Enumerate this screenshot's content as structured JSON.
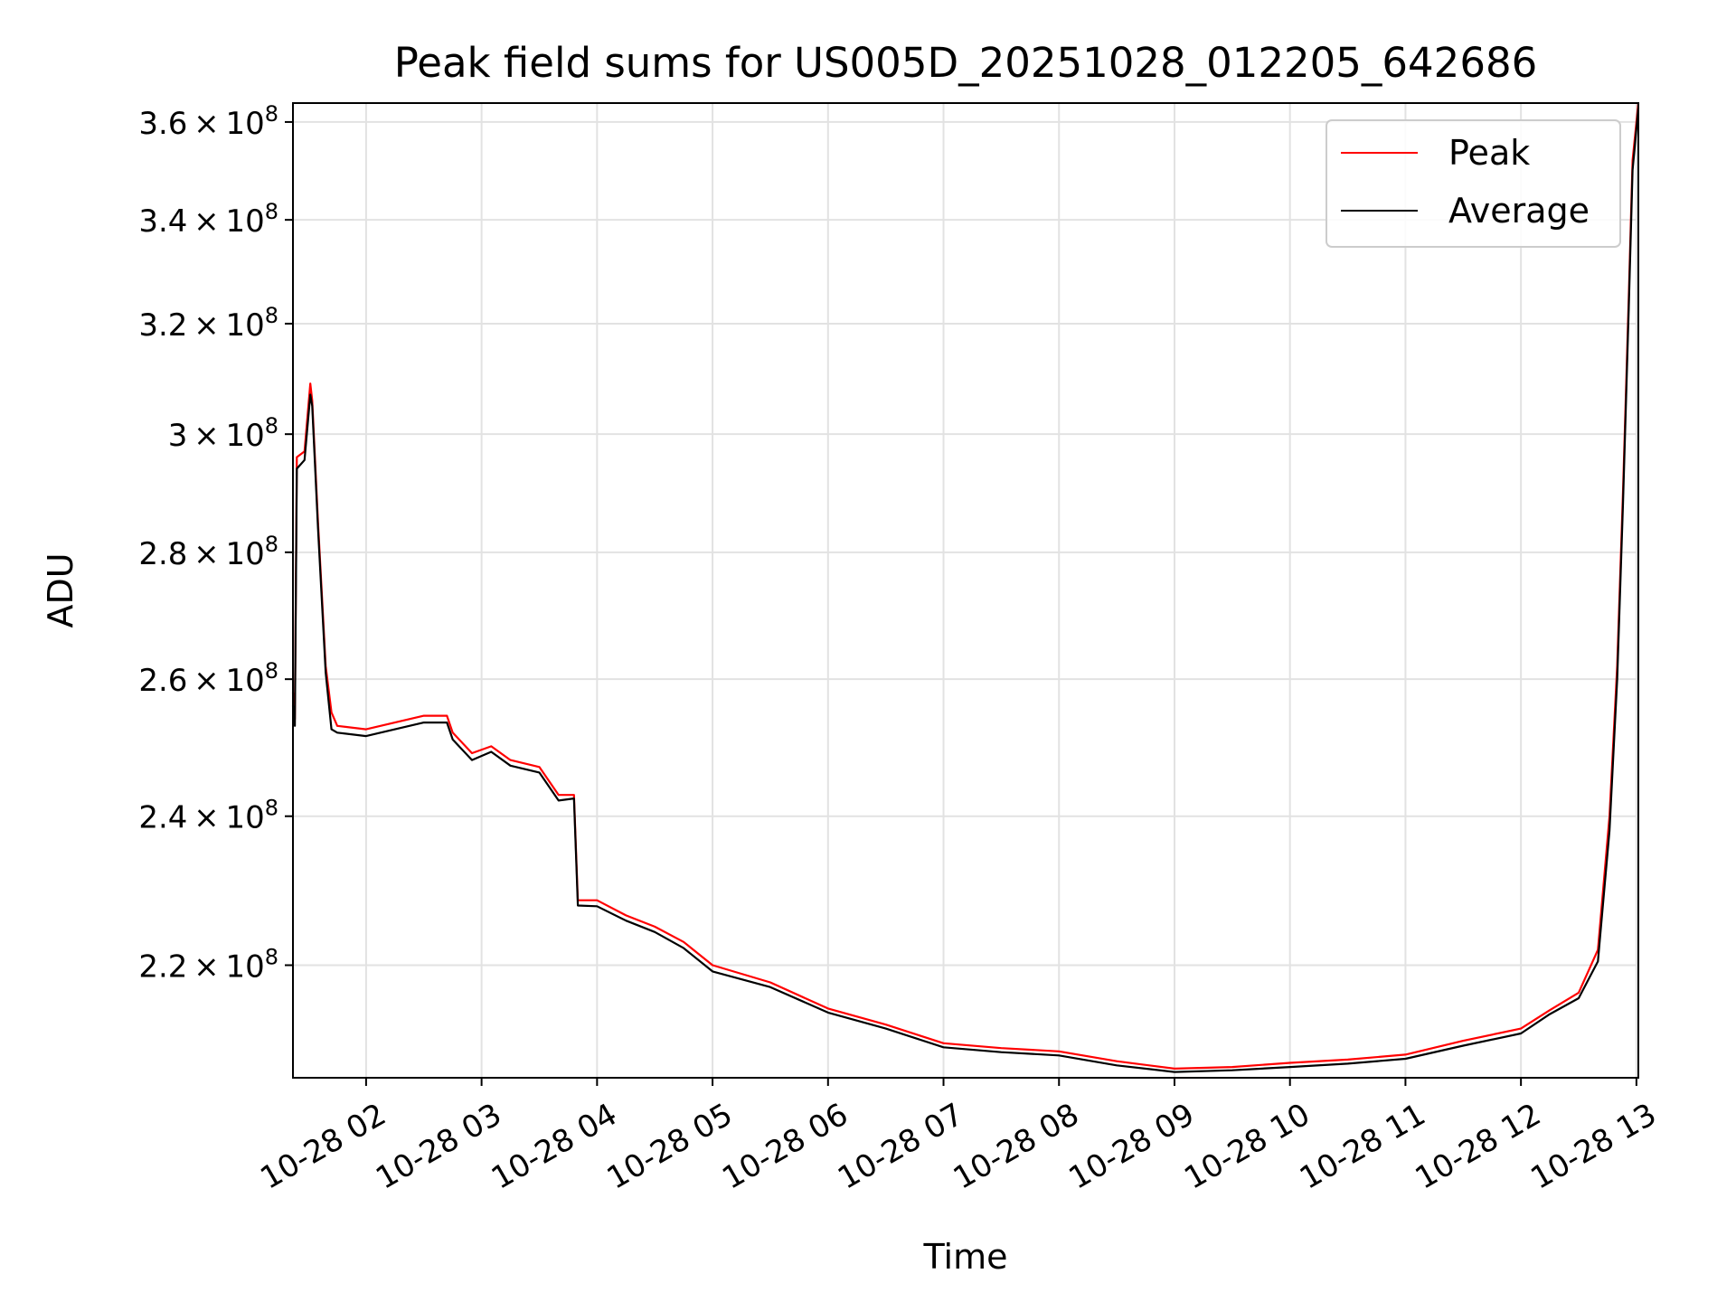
{
  "chart_data": {
    "type": "line",
    "title": "Peak field sums for US005D_20251028_012205_642686",
    "xlabel": "Time",
    "ylabel": "ADU",
    "y_scale": "log",
    "grid": true,
    "legend_position": "upper right",
    "xlim": [
      "2025-10-28 01:22",
      "2025-10-28 13:01"
    ],
    "ylim": [
      206000000,
      364000000
    ],
    "x_tick_labels": [
      "10-28 02",
      "10-28 03",
      "10-28 04",
      "10-28 05",
      "10-28 06",
      "10-28 07",
      "10-28 08",
      "10-28 09",
      "10-28 10",
      "10-28 11",
      "10-28 12",
      "10-28 13"
    ],
    "y_ticks": [
      {
        "value": 220000000,
        "mantissa": "2.2",
        "exponent": "8"
      },
      {
        "value": 240000000,
        "mantissa": "2.4",
        "exponent": "8"
      },
      {
        "value": 260000000,
        "mantissa": "2.6",
        "exponent": "8"
      },
      {
        "value": 280000000,
        "mantissa": "2.8",
        "exponent": "8"
      },
      {
        "value": 300000000,
        "mantissa": "3",
        "exponent": "8"
      },
      {
        "value": 320000000,
        "mantissa": "3.2",
        "exponent": "8"
      },
      {
        "value": 340000000,
        "mantissa": "3.4",
        "exponent": "8"
      },
      {
        "value": 360000000,
        "mantissa": "3.6",
        "exponent": "8"
      }
    ],
    "series": [
      {
        "name": "Peak",
        "color": "#ff0000",
        "points": [
          [
            "2025-10-28 01:22",
            258000000
          ],
          [
            "2025-10-28 01:23",
            254000000
          ],
          [
            "2025-10-28 01:24",
            296000000
          ],
          [
            "2025-10-28 01:28",
            297000000
          ],
          [
            "2025-10-28 01:31",
            309000000
          ],
          [
            "2025-10-28 01:32",
            306000000
          ],
          [
            "2025-10-28 01:35",
            285000000
          ],
          [
            "2025-10-28 01:39",
            262000000
          ],
          [
            "2025-10-28 01:42",
            255000000
          ],
          [
            "2025-10-28 01:45",
            253000000
          ],
          [
            "2025-10-28 02:00",
            252500000
          ],
          [
            "2025-10-28 02:15",
            253500000
          ],
          [
            "2025-10-28 02:30",
            254500000
          ],
          [
            "2025-10-28 02:42",
            254500000
          ],
          [
            "2025-10-28 02:45",
            252000000
          ],
          [
            "2025-10-28 02:55",
            249000000
          ],
          [
            "2025-10-28 03:05",
            250000000
          ],
          [
            "2025-10-28 03:15",
            248000000
          ],
          [
            "2025-10-28 03:30",
            247000000
          ],
          [
            "2025-10-28 03:40",
            243000000
          ],
          [
            "2025-10-28 03:48",
            243000000
          ],
          [
            "2025-10-28 03:50",
            228500000
          ],
          [
            "2025-10-28 04:00",
            228500000
          ],
          [
            "2025-10-28 04:15",
            226500000
          ],
          [
            "2025-10-28 04:30",
            225000000
          ],
          [
            "2025-10-28 04:45",
            223000000
          ],
          [
            "2025-10-28 05:00",
            220000000
          ],
          [
            "2025-10-28 05:30",
            217800000
          ],
          [
            "2025-10-28 06:00",
            214500000
          ],
          [
            "2025-10-28 06:30",
            212500000
          ],
          [
            "2025-10-28 07:00",
            210200000
          ],
          [
            "2025-10-28 07:30",
            209600000
          ],
          [
            "2025-10-28 08:00",
            209200000
          ],
          [
            "2025-10-28 08:30",
            208000000
          ],
          [
            "2025-10-28 09:00",
            207100000
          ],
          [
            "2025-10-28 09:30",
            207300000
          ],
          [
            "2025-10-28 10:00",
            207800000
          ],
          [
            "2025-10-28 10:30",
            208200000
          ],
          [
            "2025-10-28 11:00",
            208800000
          ],
          [
            "2025-10-28 11:30",
            210500000
          ],
          [
            "2025-10-28 12:00",
            212000000
          ],
          [
            "2025-10-28 12:15",
            214300000
          ],
          [
            "2025-10-28 12:30",
            216500000
          ],
          [
            "2025-10-28 12:40",
            222000000
          ],
          [
            "2025-10-28 12:46",
            240000000
          ],
          [
            "2025-10-28 12:50",
            262000000
          ],
          [
            "2025-10-28 12:53",
            290000000
          ],
          [
            "2025-10-28 12:56",
            325000000
          ],
          [
            "2025-10-28 12:58",
            352000000
          ],
          [
            "2025-10-28 13:01",
            364000000
          ]
        ]
      },
      {
        "name": "Average",
        "color": "#000000",
        "points": [
          [
            "2025-10-28 01:22",
            256000000
          ],
          [
            "2025-10-28 01:23",
            253000000
          ],
          [
            "2025-10-28 01:24",
            294000000
          ],
          [
            "2025-10-28 01:28",
            295500000
          ],
          [
            "2025-10-28 01:31",
            307000000
          ],
          [
            "2025-10-28 01:32",
            305000000
          ],
          [
            "2025-10-28 01:35",
            284000000
          ],
          [
            "2025-10-28 01:39",
            261000000
          ],
          [
            "2025-10-28 01:42",
            252500000
          ],
          [
            "2025-10-28 01:45",
            252000000
          ],
          [
            "2025-10-28 02:00",
            251500000
          ],
          [
            "2025-10-28 02:15",
            252500000
          ],
          [
            "2025-10-28 02:30",
            253500000
          ],
          [
            "2025-10-28 02:42",
            253500000
          ],
          [
            "2025-10-28 02:45",
            251000000
          ],
          [
            "2025-10-28 02:55",
            248000000
          ],
          [
            "2025-10-28 03:05",
            249200000
          ],
          [
            "2025-10-28 03:15",
            247200000
          ],
          [
            "2025-10-28 03:30",
            246200000
          ],
          [
            "2025-10-28 03:40",
            242200000
          ],
          [
            "2025-10-28 03:48",
            242500000
          ],
          [
            "2025-10-28 03:50",
            227800000
          ],
          [
            "2025-10-28 04:00",
            227700000
          ],
          [
            "2025-10-28 04:15",
            225800000
          ],
          [
            "2025-10-28 04:30",
            224300000
          ],
          [
            "2025-10-28 04:45",
            222200000
          ],
          [
            "2025-10-28 05:00",
            219200000
          ],
          [
            "2025-10-28 05:30",
            217200000
          ],
          [
            "2025-10-28 06:00",
            214000000
          ],
          [
            "2025-10-28 06:30",
            212000000
          ],
          [
            "2025-10-28 07:00",
            209700000
          ],
          [
            "2025-10-28 07:30",
            209100000
          ],
          [
            "2025-10-28 08:00",
            208700000
          ],
          [
            "2025-10-28 08:30",
            207500000
          ],
          [
            "2025-10-28 09:00",
            206700000
          ],
          [
            "2025-10-28 09:30",
            206900000
          ],
          [
            "2025-10-28 10:00",
            207300000
          ],
          [
            "2025-10-28 10:30",
            207700000
          ],
          [
            "2025-10-28 11:00",
            208300000
          ],
          [
            "2025-10-28 11:30",
            209900000
          ],
          [
            "2025-10-28 12:00",
            211400000
          ],
          [
            "2025-10-28 12:15",
            213800000
          ],
          [
            "2025-10-28 12:30",
            215800000
          ],
          [
            "2025-10-28 12:40",
            220500000
          ],
          [
            "2025-10-28 12:46",
            238000000
          ],
          [
            "2025-10-28 12:50",
            260000000
          ],
          [
            "2025-10-28 12:53",
            288000000
          ],
          [
            "2025-10-28 12:56",
            323000000
          ],
          [
            "2025-10-28 12:58",
            350000000
          ],
          [
            "2025-10-28 13:01",
            363000000
          ]
        ]
      }
    ]
  }
}
